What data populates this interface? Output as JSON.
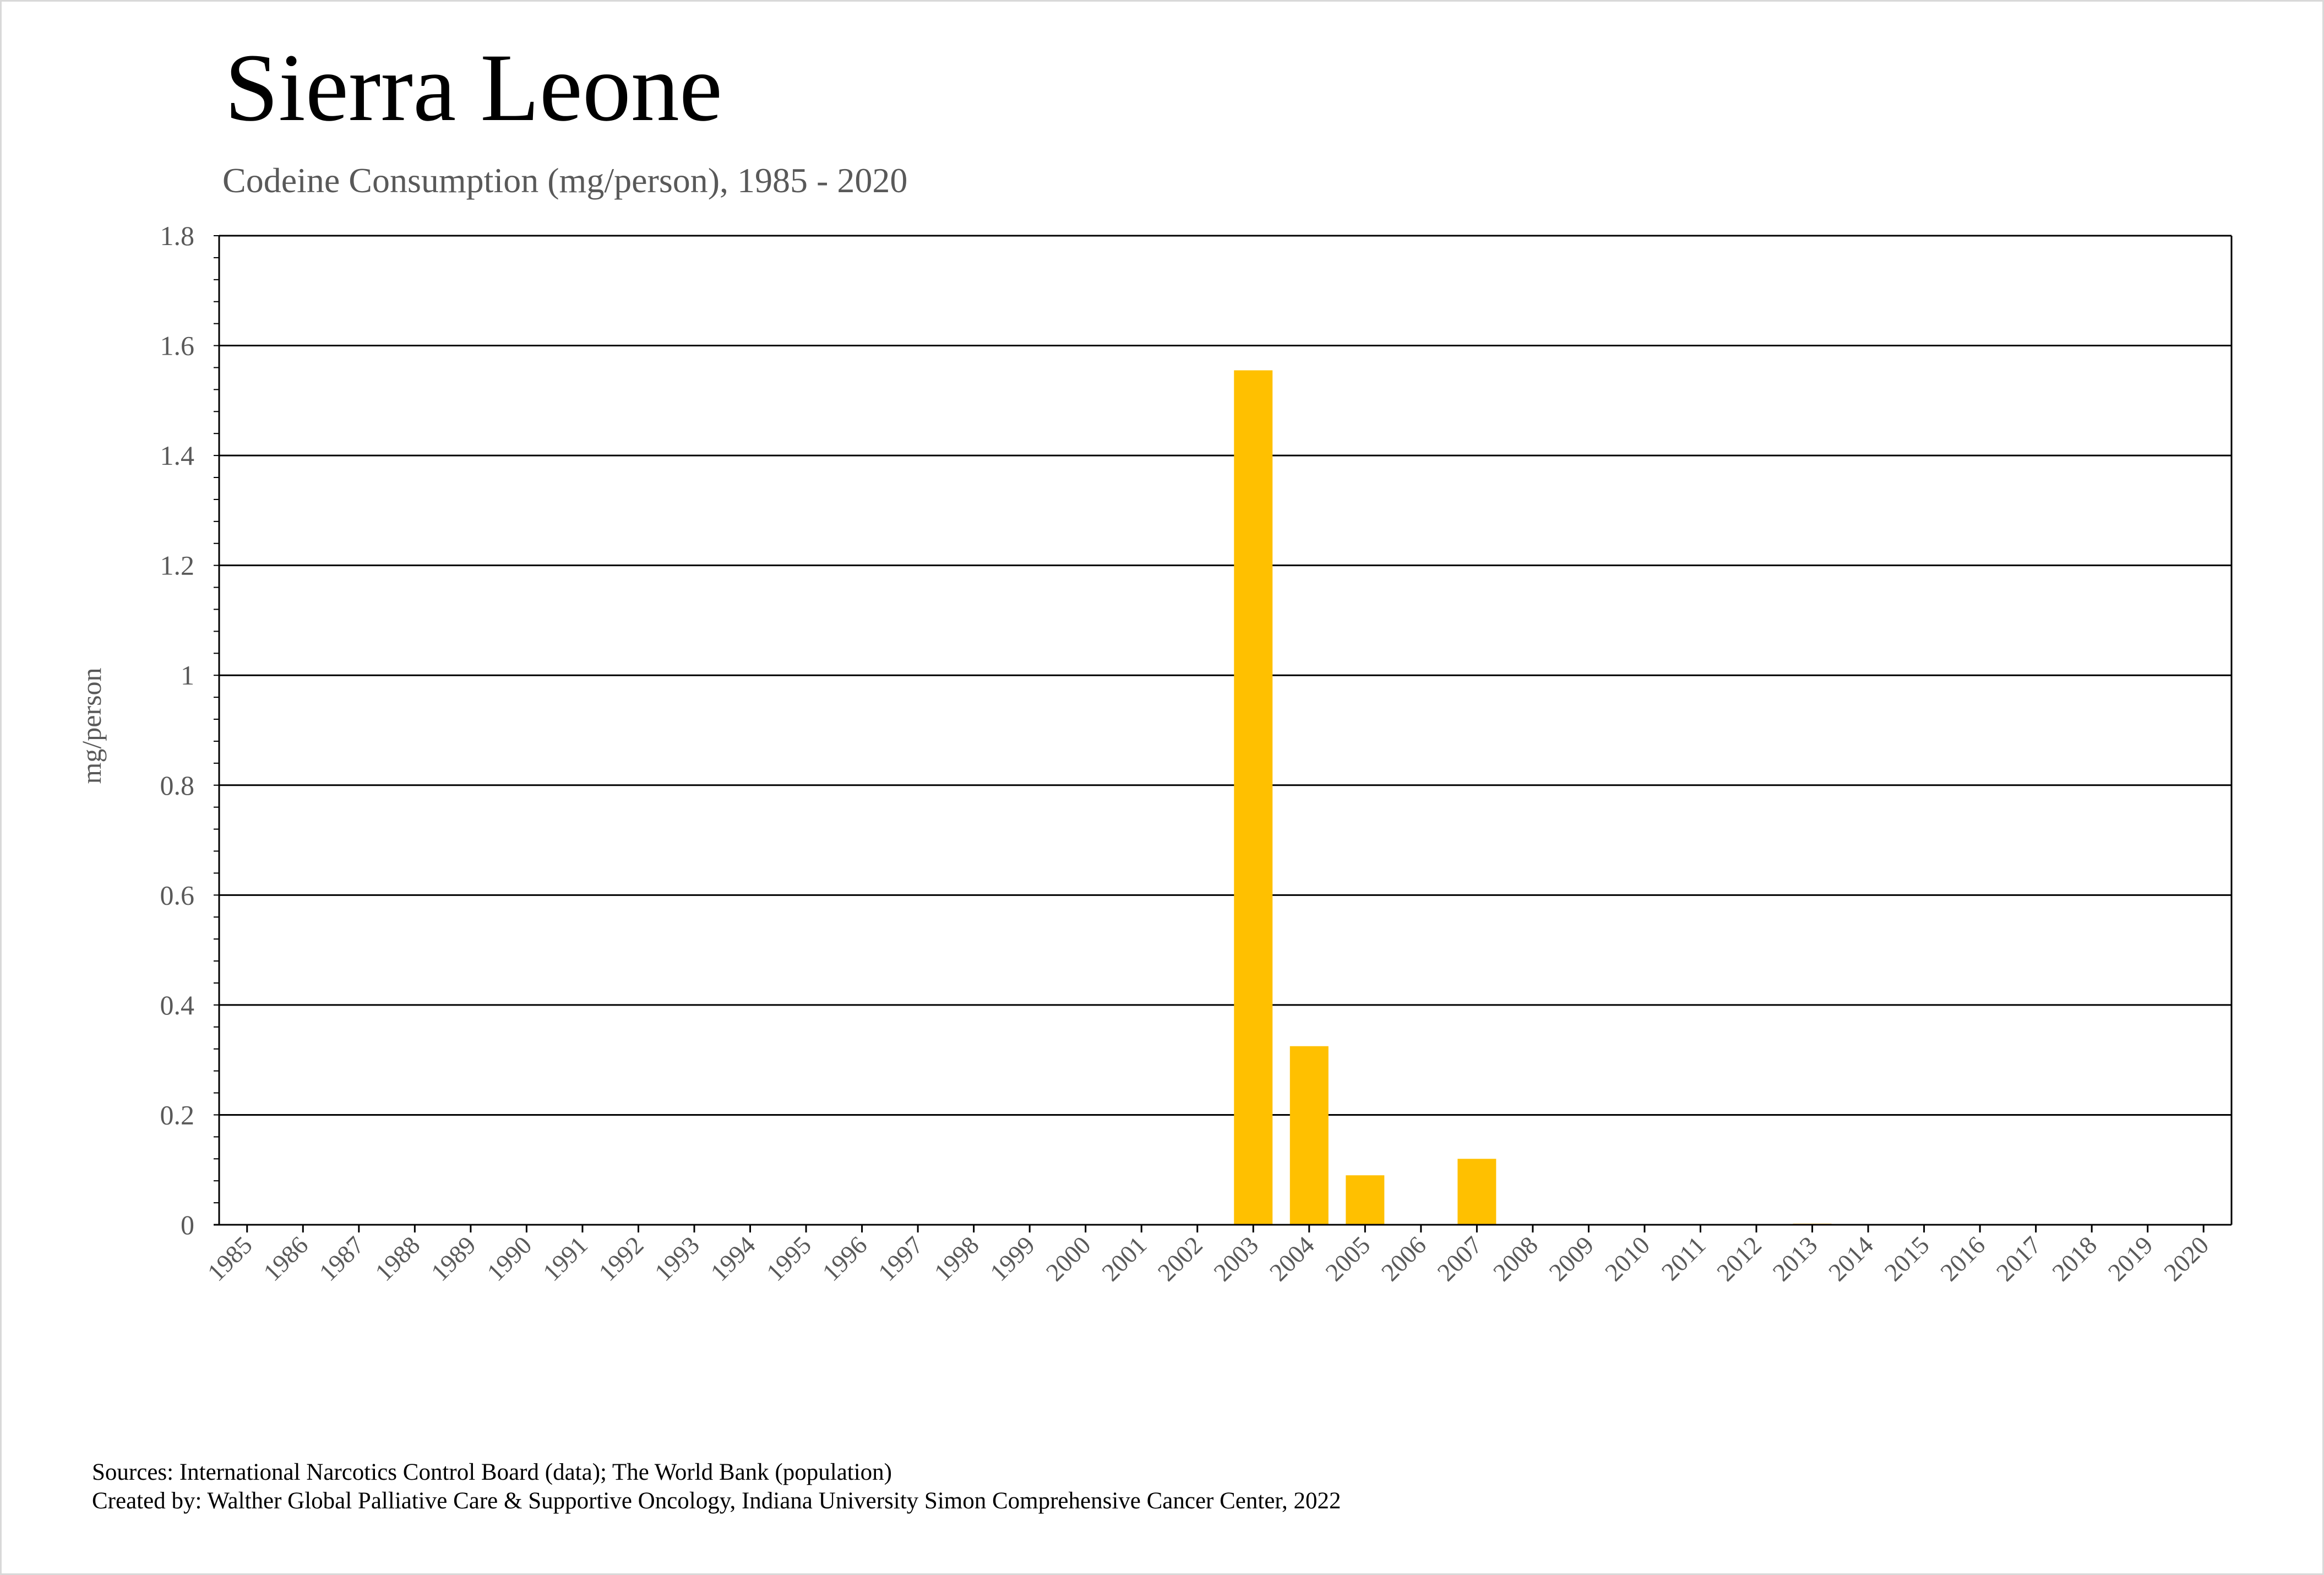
{
  "header": {
    "title": "Sierra Leone",
    "subtitle": "Codeine Consumption (mg/person), 1985 - 2020"
  },
  "footer": {
    "sources": "Sources: International Narcotics Control Board (data); The World Bank (population)",
    "created_by": "Created by: Walther Global Palliative Care & Supportive Oncology, Indiana University Simon Comprehensive Cancer Center, 2022"
  },
  "colors": {
    "bar": "#FFC000",
    "grid": "#000000",
    "axis_text": "#595959"
  },
  "chart_data": {
    "type": "bar",
    "title": "Sierra Leone",
    "subtitle": "Codeine Consumption (mg/person), 1985 - 2020",
    "xlabel": "",
    "ylabel": "mg/person",
    "ylim": [
      0,
      1.8
    ],
    "yticks": [
      0,
      0.2,
      0.4,
      0.6,
      0.8,
      1,
      1.2,
      1.4,
      1.6,
      1.8
    ],
    "ytick_labels": [
      "0",
      "0.2",
      "0.4",
      "0.6",
      "0.8",
      "1",
      "1.2",
      "1.4",
      "1.6",
      "1.8"
    ],
    "grid": true,
    "legend": "none",
    "categories": [
      "1985",
      "1986",
      "1987",
      "1988",
      "1989",
      "1990",
      "1991",
      "1992",
      "1993",
      "1994",
      "1995",
      "1996",
      "1997",
      "1998",
      "1999",
      "2000",
      "2001",
      "2002",
      "2003",
      "2004",
      "2005",
      "2006",
      "2007",
      "2008",
      "2009",
      "2010",
      "2011",
      "2012",
      "2013",
      "2014",
      "2015",
      "2016",
      "2017",
      "2018",
      "2019",
      "2020"
    ],
    "values": [
      0,
      0,
      0,
      0,
      0,
      0,
      0,
      0,
      0,
      0,
      0,
      0,
      0,
      0,
      0,
      0,
      0,
      0,
      1.555,
      0.325,
      0.09,
      0,
      0.12,
      0,
      0,
      0,
      0,
      0,
      0.002,
      0,
      0,
      0,
      0,
      0,
      0,
      0
    ]
  }
}
